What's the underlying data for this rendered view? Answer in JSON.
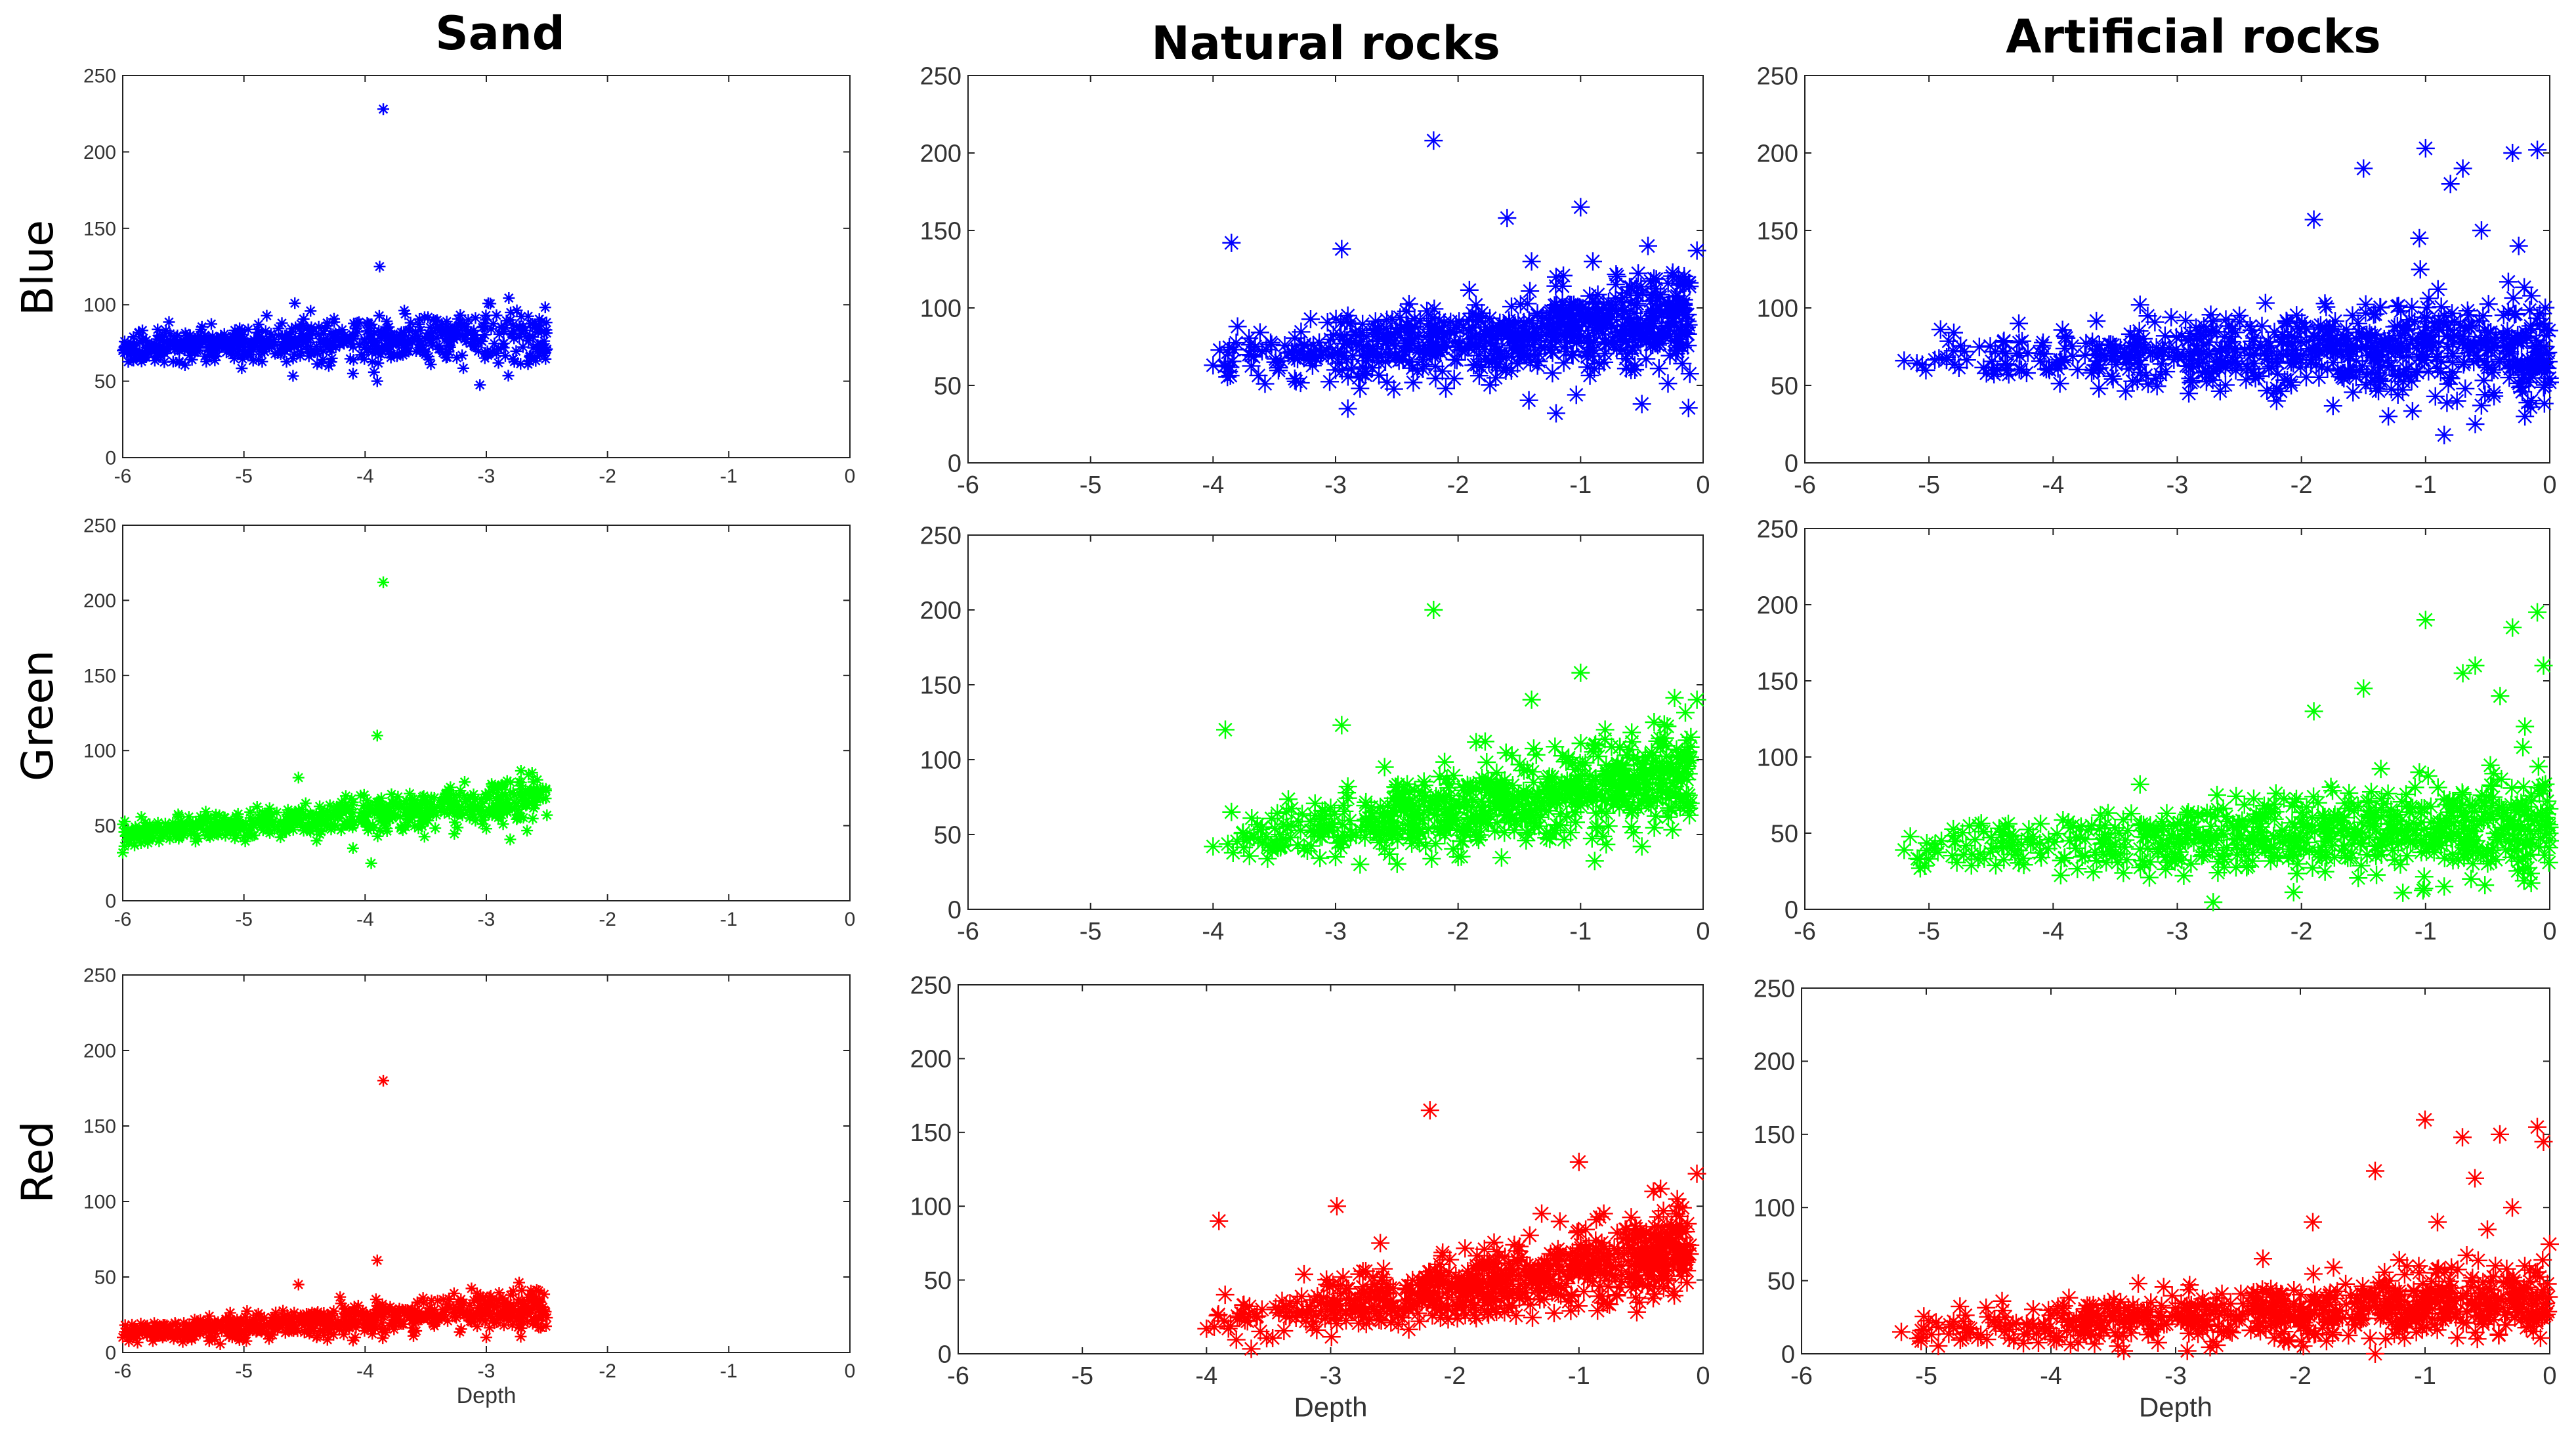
{
  "figure": {
    "column_titles": [
      "Sand",
      "Natural rocks",
      "Artificial rocks"
    ],
    "row_labels": [
      "Blue",
      "Green",
      "Red"
    ]
  },
  "chart_data": [
    {
      "type": "scatter",
      "column": "Sand",
      "row": "Blue",
      "color": "#0000ff",
      "marker": "asterisk",
      "xlabel": "",
      "xlim": [
        -6,
        0
      ],
      "ylim": [
        0,
        250
      ],
      "xticks": [
        -6,
        -5,
        -4,
        -3,
        -2,
        -1,
        0
      ],
      "yticks": [
        0,
        50,
        100,
        150,
        200,
        250
      ],
      "cluster": {
        "x_range": [
          -6,
          -2.5
        ],
        "y_start": 72,
        "y_end": 80,
        "spread": 7
      },
      "points": [
        [
          -6,
          70
        ],
        [
          -5.8,
          72
        ],
        [
          -5.5,
          74
        ],
        [
          -5.2,
          73
        ],
        [
          -4.9,
          75
        ],
        [
          -4.6,
          74
        ],
        [
          -4.58,
          101
        ],
        [
          -4.45,
          96
        ],
        [
          -4.3,
          60
        ],
        [
          -4.1,
          55
        ],
        [
          -3.9,
          50
        ],
        [
          -3.88,
          125
        ],
        [
          -3.85,
          228
        ],
        [
          -3.7,
          82
        ],
        [
          -3.4,
          85
        ],
        [
          -3.1,
          80
        ],
        [
          -2.9,
          62
        ],
        [
          -2.8,
          90
        ],
        [
          -2.6,
          85
        ],
        [
          -2.5,
          71
        ]
      ]
    },
    {
      "type": "scatter",
      "column": "Natural rocks",
      "row": "Blue",
      "color": "#0000ff",
      "marker": "asterisk",
      "xlabel": "",
      "xlim": [
        -6,
        0
      ],
      "ylim": [
        0,
        250
      ],
      "xticks": [
        -6,
        -5,
        -4,
        -3,
        -2,
        -1,
        0
      ],
      "yticks": [
        0,
        50,
        100,
        150,
        200,
        250
      ],
      "cluster": {
        "x_range": [
          -4,
          -0.1
        ],
        "y_start": 65,
        "y_end": 95,
        "spread": 12
      },
      "points": [
        [
          -4,
          63
        ],
        [
          -3.85,
          142
        ],
        [
          -3.8,
          88
        ],
        [
          -3.6,
          72
        ],
        [
          -3.2,
          72
        ],
        [
          -3,
          60
        ],
        [
          -2.95,
          138
        ],
        [
          -2.9,
          95
        ],
        [
          -2.8,
          48
        ],
        [
          -2.9,
          35
        ],
        [
          -2.4,
          65
        ],
        [
          -2.2,
          208
        ],
        [
          -2.1,
          48
        ],
        [
          -1.6,
          158
        ],
        [
          -1.4,
          130
        ],
        [
          -1.2,
          120
        ],
        [
          -1.0,
          165
        ],
        [
          -0.9,
          130
        ],
        [
          -1.2,
          32
        ],
        [
          -0.5,
          38
        ],
        [
          -0.45,
          140
        ],
        [
          -0.2,
          120
        ],
        [
          -0.05,
          137
        ]
      ]
    },
    {
      "type": "scatter",
      "column": "Artificial rocks",
      "row": "Blue",
      "color": "#0000ff",
      "marker": "asterisk",
      "xlabel": "",
      "xlim": [
        -6,
        0
      ],
      "ylim": [
        0,
        250
      ],
      "xticks": [
        -6,
        -5,
        -4,
        -3,
        -2,
        -1,
        0
      ],
      "yticks": [
        0,
        50,
        100,
        150,
        200,
        250
      ],
      "cluster": {
        "x_range": [
          -5.2,
          0
        ],
        "y_start": 67,
        "y_end": 75,
        "spread": 12
      },
      "points": [
        [
          -5.2,
          66
        ],
        [
          -4.8,
          84
        ],
        [
          -4.4,
          78
        ],
        [
          -3.3,
          102
        ],
        [
          -2.5,
          95
        ],
        [
          -2.2,
          40
        ],
        [
          -1.9,
          157
        ],
        [
          -1.6,
          75
        ],
        [
          -1.5,
          190
        ],
        [
          -1.4,
          48
        ],
        [
          -1.3,
          30
        ],
        [
          -1.05,
          145
        ],
        [
          -1.0,
          203
        ],
        [
          -0.9,
          112
        ],
        [
          -0.85,
          18
        ],
        [
          -0.8,
          180
        ],
        [
          -0.7,
          190
        ],
        [
          -0.6,
          25
        ],
        [
          -0.55,
          150
        ],
        [
          -0.45,
          60
        ],
        [
          -0.3,
          200
        ],
        [
          -0.25,
          140
        ],
        [
          -0.2,
          30
        ],
        [
          -0.1,
          202
        ],
        [
          -0.05,
          90
        ],
        [
          0,
          52
        ]
      ]
    },
    {
      "type": "scatter",
      "column": "Sand",
      "row": "Green",
      "color": "#00ff00",
      "marker": "asterisk",
      "xlabel": "",
      "xlim": [
        -6,
        0
      ],
      "ylim": [
        0,
        250
      ],
      "xticks": [
        -6,
        -5,
        -4,
        -3,
        -2,
        -1,
        0
      ],
      "yticks": [
        0,
        50,
        100,
        150,
        200,
        250
      ],
      "cluster": {
        "x_range": [
          -6,
          -2.5
        ],
        "y_start": 45,
        "y_end": 67,
        "spread": 6
      },
      "points": [
        [
          -6,
          32
        ],
        [
          -5.8,
          45
        ],
        [
          -5.5,
          48
        ],
        [
          -5.2,
          50
        ],
        [
          -4.9,
          52
        ],
        [
          -4.6,
          55
        ],
        [
          -4.55,
          82
        ],
        [
          -4.4,
          40
        ],
        [
          -4.1,
          35
        ],
        [
          -3.95,
          25
        ],
        [
          -3.9,
          110
        ],
        [
          -3.85,
          212
        ],
        [
          -3.6,
          58
        ],
        [
          -3.3,
          70
        ],
        [
          -3.0,
          48
        ],
        [
          -2.8,
          72
        ],
        [
          -2.6,
          68
        ],
        [
          -2.5,
          57
        ]
      ]
    },
    {
      "type": "scatter",
      "column": "Natural rocks",
      "row": "Green",
      "color": "#00ff00",
      "marker": "asterisk",
      "xlabel": "",
      "xlim": [
        -6,
        0
      ],
      "ylim": [
        0,
        250
      ],
      "xticks": [
        -6,
        -5,
        -4,
        -3,
        -2,
        -1,
        0
      ],
      "yticks": [
        0,
        50,
        100,
        150,
        200,
        250
      ],
      "cluster": {
        "x_range": [
          -4,
          -0.1
        ],
        "y_start": 42,
        "y_end": 92,
        "spread": 12
      },
      "points": [
        [
          -4,
          42
        ],
        [
          -3.9,
          120
        ],
        [
          -3.85,
          65
        ],
        [
          -3.6,
          55
        ],
        [
          -3.0,
          35
        ],
        [
          -2.95,
          123
        ],
        [
          -2.9,
          82
        ],
        [
          -2.6,
          95
        ],
        [
          -2.8,
          30
        ],
        [
          -2.2,
          200
        ],
        [
          -2.0,
          35
        ],
        [
          -1.4,
          140
        ],
        [
          -1.0,
          158
        ],
        [
          -0.8,
          120
        ],
        [
          -0.5,
          42
        ],
        [
          -0.4,
          125
        ],
        [
          -0.1,
          115
        ],
        [
          -0.05,
          140
        ]
      ]
    },
    {
      "type": "scatter",
      "column": "Artificial rocks",
      "row": "Green",
      "color": "#00ff00",
      "marker": "asterisk",
      "xlabel": "",
      "xlim": [
        -6,
        0
      ],
      "ylim": [
        0,
        250
      ],
      "xticks": [
        -6,
        -5,
        -4,
        -3,
        -2,
        -1,
        0
      ],
      "yticks": [
        0,
        50,
        100,
        150,
        200,
        250
      ],
      "cluster": {
        "x_range": [
          -5.2,
          0
        ],
        "y_start": 40,
        "y_end": 55,
        "spread": 12
      },
      "points": [
        [
          -5.2,
          39
        ],
        [
          -4.9,
          45
        ],
        [
          -4.6,
          55
        ],
        [
          -3.3,
          82
        ],
        [
          -2.3,
          68
        ],
        [
          -1.9,
          130
        ],
        [
          -1.6,
          70
        ],
        [
          -1.5,
          145
        ],
        [
          -1.4,
          35
        ],
        [
          -1.05,
          90
        ],
        [
          -1.0,
          190
        ],
        [
          -0.9,
          80
        ],
        [
          -0.85,
          15
        ],
        [
          -0.7,
          155
        ],
        [
          -0.6,
          160
        ],
        [
          -0.5,
          30
        ],
        [
          -0.4,
          140
        ],
        [
          -0.3,
          185
        ],
        [
          -0.2,
          120
        ],
        [
          -0.1,
          195
        ],
        [
          -0.05,
          160
        ],
        [
          0,
          45
        ]
      ]
    },
    {
      "type": "scatter",
      "column": "Sand",
      "row": "Red",
      "color": "#ff0000",
      "marker": "asterisk",
      "xlabel": "Depth",
      "xlim": [
        -6,
        0
      ],
      "ylim": [
        0,
        250
      ],
      "xticks": [
        -6,
        -5,
        -4,
        -3,
        -2,
        -1,
        0
      ],
      "yticks": [
        0,
        50,
        100,
        150,
        200,
        250
      ],
      "cluster": {
        "x_range": [
          -6,
          -2.5
        ],
        "y_start": 12,
        "y_end": 30,
        "spread": 5
      },
      "points": [
        [
          -6,
          10
        ],
        [
          -5.7,
          14
        ],
        [
          -5.4,
          15
        ],
        [
          -5.1,
          17
        ],
        [
          -4.8,
          18
        ],
        [
          -4.55,
          45
        ],
        [
          -4.4,
          10
        ],
        [
          -4.1,
          8
        ],
        [
          -3.9,
          61
        ],
        [
          -3.85,
          180
        ],
        [
          -3.6,
          25
        ],
        [
          -3.3,
          30
        ],
        [
          -3.0,
          10
        ],
        [
          -2.8,
          38
        ],
        [
          -2.6,
          35
        ],
        [
          -2.5,
          23
        ]
      ]
    },
    {
      "type": "scatter",
      "column": "Natural rocks",
      "row": "Red",
      "color": "#ff0000",
      "marker": "asterisk",
      "xlabel": "Depth",
      "xlim": [
        -6,
        0
      ],
      "ylim": [
        0,
        250
      ],
      "xticks": [
        -6,
        -5,
        -4,
        -3,
        -2,
        -1,
        0
      ],
      "yticks": [
        0,
        50,
        100,
        150,
        200,
        250
      ],
      "cluster": {
        "x_range": [
          -4,
          -0.1
        ],
        "y_start": 18,
        "y_end": 70,
        "spread": 11
      },
      "points": [
        [
          -4,
          17
        ],
        [
          -3.9,
          90
        ],
        [
          -3.85,
          40
        ],
        [
          -3.6,
          25
        ],
        [
          -3.2,
          22
        ],
        [
          -2.95,
          100
        ],
        [
          -2.9,
          52
        ],
        [
          -2.6,
          75
        ],
        [
          -2.2,
          165
        ],
        [
          -1.8,
          60
        ],
        [
          -1.3,
          95
        ],
        [
          -1.0,
          130
        ],
        [
          -0.8,
          95
        ],
        [
          -0.5,
          65
        ],
        [
          -0.4,
          110
        ],
        [
          -0.2,
          100
        ],
        [
          -0.05,
          122
        ]
      ]
    },
    {
      "type": "scatter",
      "column": "Artificial rocks",
      "row": "Red",
      "color": "#ff0000",
      "marker": "asterisk",
      "xlabel": "Depth",
      "xlim": [
        -6,
        0
      ],
      "ylim": [
        0,
        250
      ],
      "xticks": [
        -6,
        -5,
        -4,
        -3,
        -2,
        -1,
        0
      ],
      "yticks": [
        0,
        50,
        100,
        150,
        200,
        250
      ],
      "cluster": {
        "x_range": [
          -5.2,
          0
        ],
        "y_start": 15,
        "y_end": 38,
        "spread": 9
      },
      "points": [
        [
          -5.2,
          15
        ],
        [
          -4.9,
          18
        ],
        [
          -4.7,
          22
        ],
        [
          -3.3,
          48
        ],
        [
          -2.3,
          65
        ],
        [
          -1.9,
          90
        ],
        [
          -1.6,
          40
        ],
        [
          -1.4,
          125
        ],
        [
          -1.4,
          0
        ],
        [
          -1.05,
          60
        ],
        [
          -1.0,
          160
        ],
        [
          -0.9,
          90
        ],
        [
          -0.85,
          30
        ],
        [
          -0.7,
          148
        ],
        [
          -0.6,
          120
        ],
        [
          -0.5,
          85
        ],
        [
          -0.4,
          150
        ],
        [
          -0.3,
          100
        ],
        [
          -0.2,
          60
        ],
        [
          -0.1,
          155
        ],
        [
          -0.05,
          145
        ],
        [
          0,
          75
        ]
      ]
    }
  ]
}
